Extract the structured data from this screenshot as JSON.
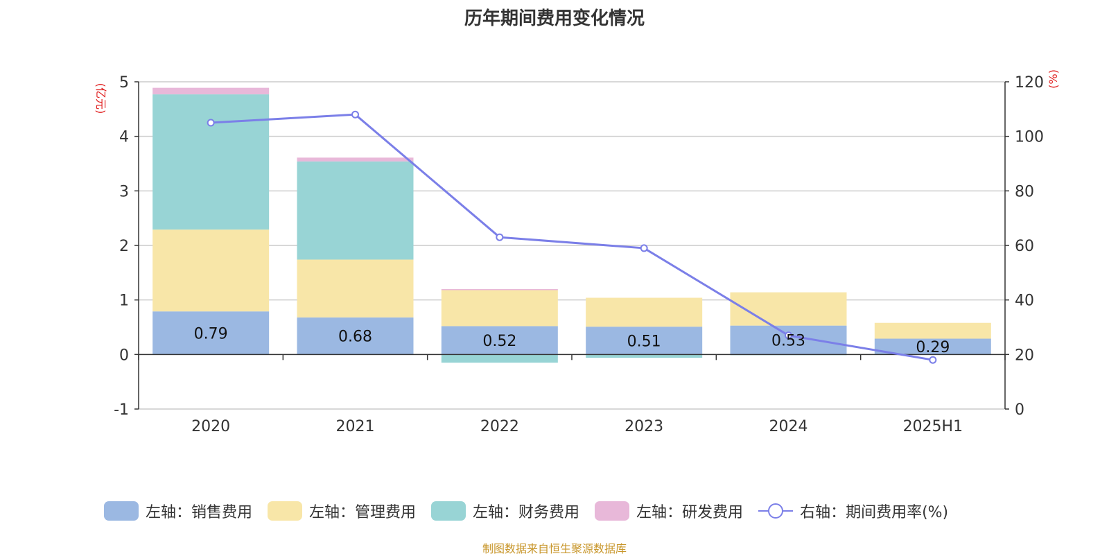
{
  "chart_data": {
    "type": "bar",
    "title": "历年期间费用变化情况",
    "categories": [
      "2020",
      "2021",
      "2022",
      "2023",
      "2024",
      "2025H1"
    ],
    "left_axis": {
      "unit": "(亿元)",
      "ylim": [
        -1,
        5
      ],
      "ticks": [
        -1,
        0,
        1,
        2,
        3,
        4,
        5
      ]
    },
    "right_axis": {
      "unit": "(%)",
      "ylim": [
        0,
        120
      ],
      "ticks": [
        0,
        20,
        40,
        60,
        80,
        100,
        120
      ]
    },
    "grid": true,
    "legend_position": "bottom",
    "series": [
      {
        "name": "左轴：销售费用",
        "kind": "bar",
        "axis": "left",
        "color": "#9bb8e2",
        "values": [
          0.79,
          0.68,
          0.52,
          0.51,
          0.53,
          0.29
        ],
        "labels": [
          "0.79",
          "0.68",
          "0.52",
          "0.51",
          "0.53",
          "0.29"
        ]
      },
      {
        "name": "左轴：管理费用",
        "kind": "bar",
        "axis": "left",
        "color": "#f8e6a8",
        "values": [
          1.5,
          1.06,
          0.66,
          0.53,
          0.61,
          0.29
        ]
      },
      {
        "name": "左轴：财务费用",
        "kind": "bar",
        "axis": "left",
        "color": "#98d4d5",
        "values": [
          2.48,
          1.8,
          -0.15,
          -0.06,
          -0.01,
          0.0
        ]
      },
      {
        "name": "左轴：研发费用",
        "kind": "bar",
        "axis": "left",
        "color": "#e8b8d9",
        "values": [
          0.12,
          0.07,
          0.02,
          0.0,
          0.0,
          0.0
        ]
      },
      {
        "name": "右轴：期间费用率(%)",
        "kind": "line",
        "axis": "right",
        "color": "#7b7fe8",
        "values": [
          105,
          108,
          63,
          59,
          27,
          18
        ]
      }
    ]
  },
  "source_note": "制图数据来自恒生聚源数据库"
}
